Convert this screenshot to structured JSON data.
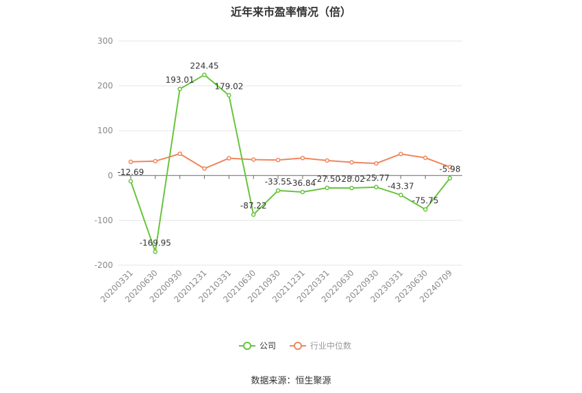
{
  "title": "近年来市盈率情况（倍）",
  "source": "数据来源：恒生聚源",
  "chart_data": {
    "type": "line",
    "title": "近年来市盈率情况（倍）",
    "categories": [
      "20200331",
      "20200630",
      "20200930",
      "20201231",
      "20210331",
      "20210630",
      "20210930",
      "20211231",
      "20220331",
      "20220630",
      "20220930",
      "20230331",
      "20230630",
      "20240709"
    ],
    "ylim": [
      -200,
      300
    ],
    "yticks": [
      -200,
      -100,
      0,
      100,
      200,
      300
    ],
    "grid": true,
    "legend_position": "bottom",
    "series": [
      {
        "name": "公司",
        "color": "#66c43a",
        "values": [
          -12.69,
          -169.95,
          193.01,
          224.45,
          179.02,
          -87.22,
          -33.55,
          -36.84,
          -27.5,
          -28.02,
          -25.77,
          -43.37,
          -75.75,
          -5.98
        ],
        "labels": [
          "-12.69",
          "-169.95",
          "193.01",
          "224.45",
          "179.02",
          "-87.22",
          "-33.55",
          "-36.84",
          "-27.50",
          "-28.02",
          "-25.77",
          "-43.37",
          "-75.75",
          "-5.98"
        ]
      },
      {
        "name": "行业中位数",
        "color": "#f0855a",
        "values": [
          30.5,
          32.0,
          48.5,
          15.5,
          38.5,
          35.5,
          34.5,
          39.0,
          33.5,
          29.5,
          27.0,
          48.0,
          39.5,
          19.0
        ]
      }
    ]
  }
}
